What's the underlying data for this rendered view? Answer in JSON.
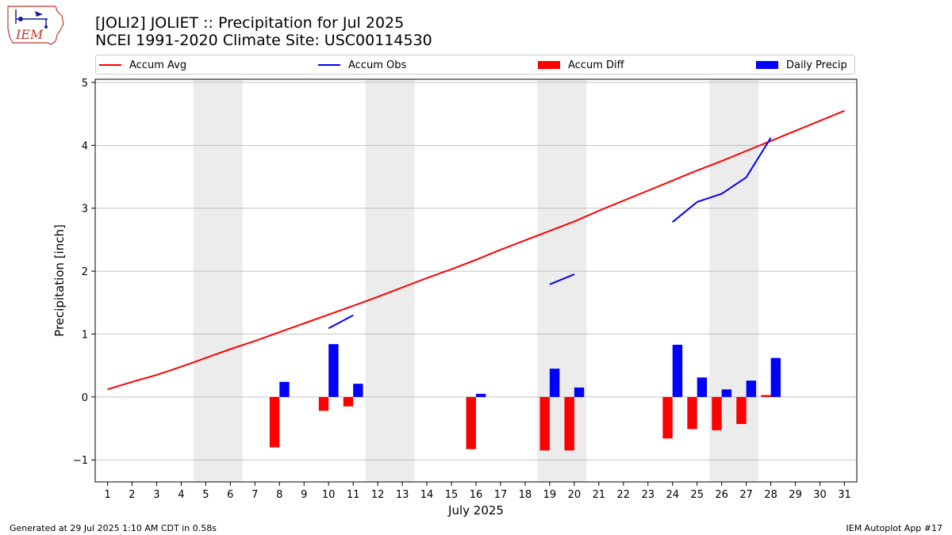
{
  "header": {
    "title_line1": "[JOLI2] JOLIET :: Precipitation for Jul 2025",
    "title_line2": "NCEI 1991-2020 Climate Site: USC00114530",
    "logo_text": "IEM"
  },
  "legend": {
    "items": [
      {
        "label": "Accum Avg",
        "color": "#ff0000",
        "kind": "line"
      },
      {
        "label": "Accum Obs",
        "color": "#0000ff",
        "kind": "line"
      },
      {
        "label": "Accum Diff",
        "color": "#ff0000",
        "kind": "patch"
      },
      {
        "label": "Daily Precip",
        "color": "#0000ff",
        "kind": "patch"
      }
    ]
  },
  "footer": {
    "left": "Generated at 29 Jul 2025 1:10 AM CDT in 0.58s",
    "right": "IEM Autoplot App #17"
  },
  "chart_data": {
    "type": "bar",
    "xlabel": "July 2025",
    "ylabel": "Precipitation [inch]",
    "xlim": [
      0.5,
      31.5
    ],
    "ylim": [
      -1.35,
      5.05
    ],
    "x_ticks": [
      1,
      2,
      3,
      4,
      5,
      6,
      7,
      8,
      9,
      10,
      11,
      12,
      13,
      14,
      15,
      16,
      17,
      18,
      19,
      20,
      21,
      22,
      23,
      24,
      25,
      26,
      27,
      28,
      29,
      30,
      31
    ],
    "y_ticks": [
      -1,
      0,
      1,
      2,
      3,
      4,
      5
    ],
    "y_tick_labels": [
      "−1",
      "0",
      "1",
      "2",
      "3",
      "4",
      "5"
    ],
    "grid": "horizontal",
    "weekend_shading": [
      [
        4.5,
        6.5
      ],
      [
        11.5,
        13.5
      ],
      [
        18.5,
        20.5
      ],
      [
        25.5,
        27.5
      ]
    ],
    "series": [
      {
        "name": "Accum Avg",
        "kind": "line",
        "color": "#ff0000",
        "points": [
          [
            1,
            0.12
          ],
          [
            2,
            0.24
          ],
          [
            3,
            0.35
          ],
          [
            4,
            0.48
          ],
          [
            5,
            0.62
          ],
          [
            6,
            0.76
          ],
          [
            7,
            0.89
          ],
          [
            8,
            1.03
          ],
          [
            9,
            1.17
          ],
          [
            10,
            1.31
          ],
          [
            11,
            1.45
          ],
          [
            12,
            1.59
          ],
          [
            13,
            1.74
          ],
          [
            14,
            1.89
          ],
          [
            15,
            2.03
          ],
          [
            16,
            2.18
          ],
          [
            17,
            2.34
          ],
          [
            18,
            2.49
          ],
          [
            19,
            2.64
          ],
          [
            20,
            2.79
          ],
          [
            21,
            2.96
          ],
          [
            22,
            3.12
          ],
          [
            23,
            3.28
          ],
          [
            24,
            3.44
          ],
          [
            25,
            3.6
          ],
          [
            26,
            3.75
          ],
          [
            27,
            3.91
          ],
          [
            28,
            4.07
          ],
          [
            29,
            4.23
          ],
          [
            30,
            4.39
          ],
          [
            31,
            4.55
          ]
        ]
      },
      {
        "name": "Accum Obs",
        "kind": "line",
        "color": "#0000ff",
        "segments": [
          [
            [
              10,
              1.09
            ],
            [
              11,
              1.3
            ]
          ],
          [
            [
              19,
              1.79
            ],
            [
              20,
              1.95
            ]
          ],
          [
            [
              24,
              2.78
            ],
            [
              25,
              3.1
            ],
            [
              26,
              3.23
            ],
            [
              27,
              3.49
            ],
            [
              28,
              4.12
            ]
          ]
        ]
      },
      {
        "name": "Accum Diff",
        "kind": "bar",
        "color": "#ff0000",
        "offset": -0.2,
        "points": [
          [
            8,
            -0.8
          ],
          [
            10,
            -0.22
          ],
          [
            11,
            -0.15
          ],
          [
            16,
            -0.83
          ],
          [
            19,
            -0.85
          ],
          [
            20,
            -0.85
          ],
          [
            24,
            -0.66
          ],
          [
            25,
            -0.51
          ],
          [
            26,
            -0.53
          ],
          [
            27,
            -0.43
          ],
          [
            28,
            0.03
          ]
        ]
      },
      {
        "name": "Daily Precip",
        "kind": "bar",
        "color": "#0000ff",
        "offset": 0.2,
        "points": [
          [
            8,
            0.24
          ],
          [
            10,
            0.84
          ],
          [
            11,
            0.21
          ],
          [
            16,
            0.05
          ],
          [
            19,
            0.45
          ],
          [
            20,
            0.15
          ],
          [
            24,
            0.83
          ],
          [
            25,
            0.31
          ],
          [
            26,
            0.12
          ],
          [
            27,
            0.26
          ],
          [
            28,
            0.62
          ]
        ]
      }
    ]
  }
}
